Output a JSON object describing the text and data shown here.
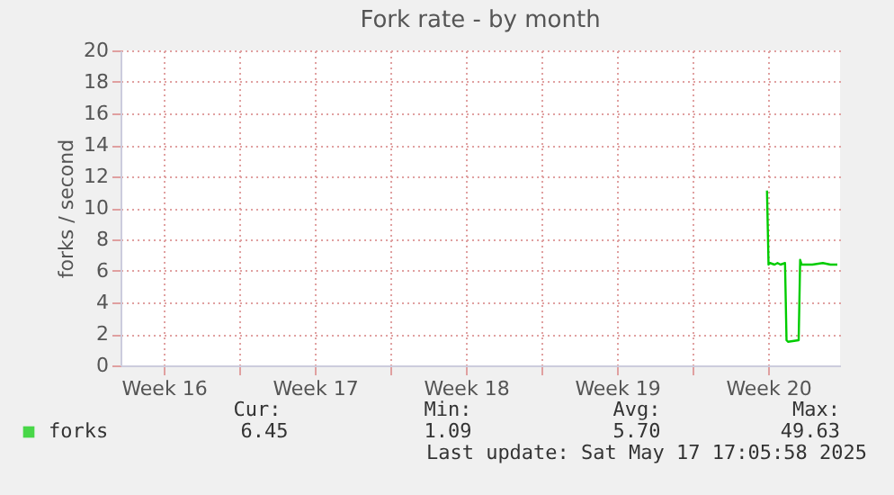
{
  "chart_data": {
    "type": "line",
    "title": "Fork rate - by month",
    "ylabel": "forks / second",
    "xlim": [
      "2025-04-14T12:00",
      "2025-05-17T20:00"
    ],
    "xticks": [
      {
        "value": "2025-04-16T12:00",
        "label": "Week 16"
      },
      {
        "value": "2025-04-20",
        "label": null
      },
      {
        "value": "2025-04-23T12:00",
        "label": "Week 17"
      },
      {
        "value": "2025-04-27",
        "label": null
      },
      {
        "value": "2025-04-30T12:00",
        "label": "Week 18"
      },
      {
        "value": "2025-05-04",
        "label": null
      },
      {
        "value": "2025-05-07T12:00",
        "label": "Week 19"
      },
      {
        "value": "2025-05-11",
        "label": null
      },
      {
        "value": "2025-05-14T12:00",
        "label": "Week 20"
      }
    ],
    "ylim": [
      0,
      20
    ],
    "yticks": [
      0,
      2,
      4,
      6,
      8,
      10,
      12,
      14,
      16,
      18,
      20
    ],
    "grid": true,
    "legend": "bottom",
    "series": [
      {
        "name": "forks",
        "color": "#00cc00",
        "x": [
          "2025-05-14T10:48",
          "2025-05-14T12:30",
          "2025-05-14T14:10",
          "2025-05-14T19:10",
          "2025-05-14T22:30",
          "2025-05-15T01:50",
          "2025-05-15T06:50",
          "2025-05-15T08:30",
          "2025-05-15T10:10",
          "2025-05-15T22:00",
          "2025-05-15T23:40",
          "2025-05-16T01:20",
          "2025-05-16T13:10",
          "2025-05-17T00:50",
          "2025-05-17T09:20",
          "2025-05-17T17:00"
        ],
        "values": [
          11.1,
          6.4,
          6.5,
          6.4,
          6.5,
          6.4,
          6.5,
          1.6,
          1.5,
          1.6,
          6.7,
          6.4,
          6.4,
          6.5,
          6.4,
          6.4
        ]
      }
    ],
    "annotations": [
      "Cur:",
      "Min:",
      "Avg:",
      "Max:",
      "6.45",
      "1.09",
      "5.70",
      "49.63",
      "Last update: Sat May 17 17:05:58 2025"
    ]
  }
}
